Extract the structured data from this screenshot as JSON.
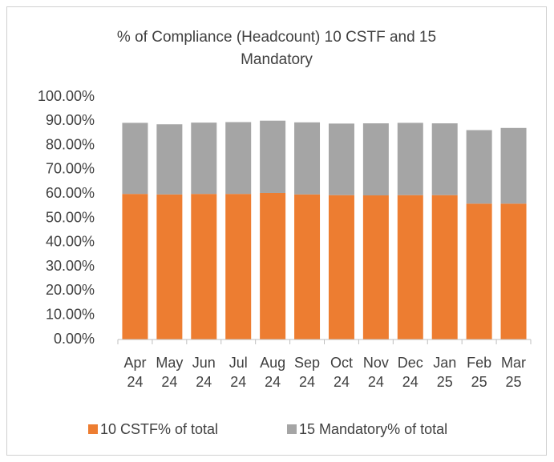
{
  "chart_data": {
    "type": "stacked_bar",
    "title": "% of Compliance (Headcount) 10 CSTF and 15 Mandatory",
    "categories": [
      "Apr 24",
      "May 24",
      "Jun 24",
      "Jul 24",
      "Aug 24",
      "Sep 24",
      "Oct 24",
      "Nov 24",
      "Dec 24",
      "Jan 25",
      "Feb 25",
      "Mar 25"
    ],
    "series": [
      {
        "name": "10 CSTF% of total",
        "color": "#ED7D31",
        "values": [
          60.0,
          59.8,
          60.0,
          60.0,
          60.4,
          59.8,
          59.5,
          59.4,
          59.5,
          59.5,
          56.0,
          56.0
        ]
      },
      {
        "name": "15 Mandatory% of total",
        "color": "#A5A5A5",
        "values": [
          29.3,
          28.9,
          29.4,
          29.6,
          29.8,
          29.7,
          29.5,
          29.7,
          29.8,
          29.6,
          30.3,
          31.2
        ]
      }
    ],
    "ylim": [
      0,
      100
    ],
    "yticks": [
      {
        "value": 0,
        "label": "0.00%"
      },
      {
        "value": 10,
        "label": "10.00%"
      },
      {
        "value": 20,
        "label": "20.00%"
      },
      {
        "value": 30,
        "label": "30.00%"
      },
      {
        "value": 40,
        "label": "40.00%"
      },
      {
        "value": 50,
        "label": "50.00%"
      },
      {
        "value": 60,
        "label": "60.00%"
      },
      {
        "value": 70,
        "label": "70.00%"
      },
      {
        "value": 80,
        "label": "80.00%"
      },
      {
        "value": 90,
        "label": "90.00%"
      },
      {
        "value": 100,
        "label": "100.00%"
      }
    ],
    "grid": false,
    "legend": "bottom"
  }
}
